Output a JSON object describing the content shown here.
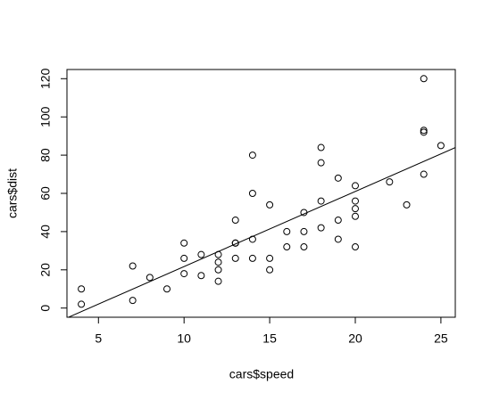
{
  "chart_data": {
    "type": "scatter",
    "x_label": "cars$speed",
    "y_label": "cars$dist",
    "x": [
      4,
      4,
      7,
      7,
      8,
      9,
      10,
      10,
      10,
      11,
      11,
      12,
      12,
      12,
      12,
      13,
      13,
      13,
      13,
      14,
      14,
      14,
      14,
      15,
      15,
      15,
      16,
      16,
      17,
      17,
      17,
      18,
      18,
      18,
      18,
      19,
      19,
      19,
      20,
      20,
      20,
      20,
      20,
      22,
      23,
      24,
      24,
      24,
      24,
      25
    ],
    "values": [
      2,
      10,
      4,
      22,
      16,
      10,
      18,
      26,
      34,
      17,
      28,
      14,
      20,
      24,
      28,
      26,
      34,
      34,
      46,
      26,
      36,
      60,
      80,
      20,
      26,
      54,
      32,
      40,
      32,
      40,
      50,
      42,
      56,
      76,
      84,
      36,
      46,
      68,
      32,
      48,
      52,
      56,
      64,
      66,
      54,
      70,
      92,
      93,
      120,
      85
    ],
    "color": "#000000",
    "regression": {
      "intercept": -17.58,
      "slope": 3.93
    },
    "xlim": [
      3.16,
      25.84
    ],
    "xticks": [
      5,
      10,
      15,
      20,
      25
    ],
    "ylim": [
      -4.8,
      124.8
    ],
    "yticks": [
      0,
      20,
      40,
      60,
      80,
      100,
      120
    ]
  }
}
